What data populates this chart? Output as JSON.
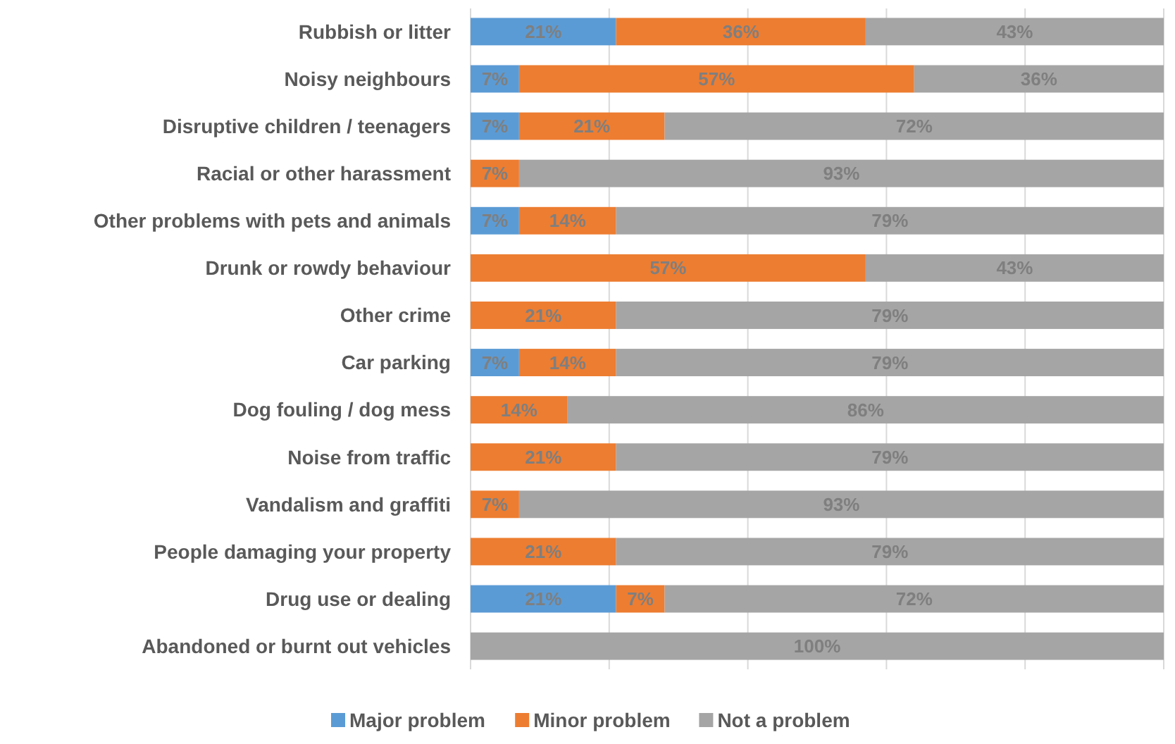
{
  "chart_data": {
    "type": "bar",
    "orientation": "horizontal",
    "stacked": true,
    "categories": [
      "Rubbish or litter",
      "Noisy neighbours",
      "Disruptive children / teenagers",
      "Racial or other harassment",
      "Other problems with pets and animals",
      "Drunk or rowdy behaviour",
      "Other crime",
      "Car parking",
      "Dog fouling / dog mess",
      "Noise from traffic",
      "Vandalism and graffiti",
      "People damaging your property",
      "Drug use or dealing",
      "Abandoned or burnt out vehicles"
    ],
    "series": [
      {
        "name": "Major problem",
        "color": "#5b9bd5",
        "values": [
          21,
          7,
          7,
          0,
          7,
          0,
          0,
          7,
          0,
          0,
          0,
          0,
          21,
          0
        ],
        "value_labels": [
          "21%",
          "7%",
          "7%",
          null,
          "7%",
          null,
          null,
          "7%",
          null,
          null,
          null,
          null,
          "21%",
          null
        ]
      },
      {
        "name": "Minor problem",
        "color": "#ed7d31",
        "values": [
          36,
          57,
          21,
          7,
          14,
          57,
          21,
          14,
          14,
          21,
          7,
          21,
          7,
          0
        ],
        "value_labels": [
          "36%",
          "57%",
          "21%",
          "7%",
          "14%",
          "57%",
          "21%",
          "14%",
          "14%",
          "21%",
          "7%",
          "21%",
          "7%",
          null
        ]
      },
      {
        "name": "Not a problem",
        "color": "#a5a5a5",
        "values": [
          43,
          36,
          72,
          93,
          79,
          43,
          79,
          79,
          86,
          79,
          93,
          79,
          72,
          100
        ],
        "value_labels": [
          "43%",
          "36%",
          "72%",
          "93%",
          "79%",
          "43%",
          "79%",
          "79%",
          "86%",
          "79%",
          "93%",
          "79%",
          "72%",
          "100%"
        ]
      }
    ],
    "xlim": [
      0,
      100
    ],
    "xticks": [
      {
        "value": 0,
        "label": null
      },
      {
        "value": 20,
        "label": null
      },
      {
        "value": 40,
        "label": null
      },
      {
        "value": 60,
        "label": null
      },
      {
        "value": 80,
        "label": null
      },
      {
        "value": 100,
        "label": null
      }
    ],
    "tick_labels": "y",
    "grid": "x",
    "legend": "bottom"
  }
}
